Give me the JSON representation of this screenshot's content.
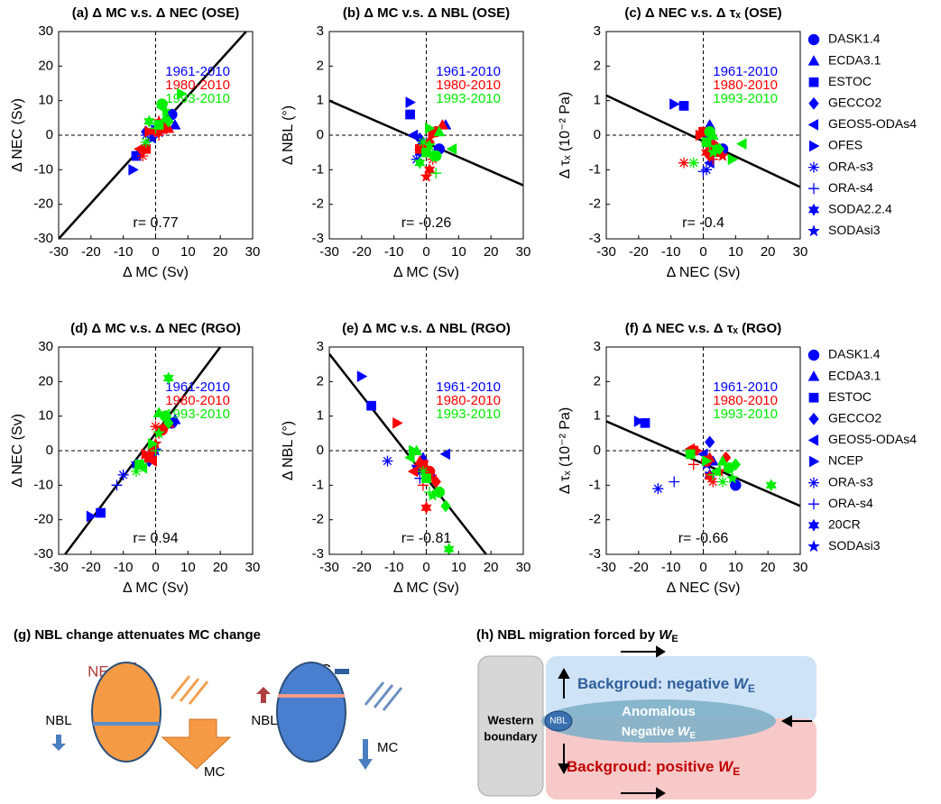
{
  "chart_data": [
    {
      "type": "scatter",
      "title": "(a) Δ MC v.s. Δ NEC (OSE)",
      "x_label": "Δ MC (Sv)",
      "y_label": "Δ NEC (Sv)",
      "annotation": "r= 0.77",
      "xlim": [
        -30,
        30
      ],
      "xticks": [
        -30,
        -20,
        -10,
        0,
        10,
        20,
        30
      ],
      "ylim": [
        -30,
        30
      ],
      "yticks": [
        -30,
        -20,
        -10,
        0,
        10,
        20,
        30
      ],
      "fit": {
        "x": [
          -30,
          28
        ],
        "y": [
          -30,
          30
        ]
      },
      "series": [
        {
          "name": "1961-2010",
          "color": "#0000ff",
          "x": [
            5,
            6,
            -6,
            -3,
            -2,
            -7,
            -3,
            2,
            0,
            -1
          ],
          "values": [
            6,
            3,
            -6,
            1,
            1,
            -10,
            0,
            1,
            2,
            -1
          ]
        },
        {
          "name": "1980-2010",
          "color": "#ff0000",
          "x": [
            3,
            4,
            -3,
            1,
            -5,
            -2,
            -4,
            1,
            0,
            1
          ],
          "values": [
            2,
            2,
            -4,
            1,
            -4,
            1,
            -6,
            0,
            1,
            4
          ]
        },
        {
          "name": "1993-2010",
          "color": "#00ee00",
          "x": [
            2,
            3,
            1,
            4,
            2,
            8,
            -3,
            0,
            -2,
            3
          ],
          "values": [
            9,
            5,
            3,
            4,
            8,
            12,
            -2,
            2,
            4,
            7
          ]
        }
      ]
    },
    {
      "type": "scatter",
      "title": "(b) Δ MC v.s. Δ NBL (OSE)",
      "x_label": "Δ MC (Sv)",
      "y_label": "Δ NBL (°)",
      "annotation": "r= -0.26",
      "xlim": [
        -30,
        30
      ],
      "xticks": [
        -30,
        -20,
        -10,
        0,
        10,
        20,
        30
      ],
      "ylim": [
        -3,
        3
      ],
      "yticks": [
        -3,
        -2,
        -1,
        0,
        1,
        2,
        3
      ],
      "fit": {
        "x": [
          -30,
          30
        ],
        "y": [
          1.0,
          -1.45
        ]
      },
      "series": [
        {
          "name": "1961-2010",
          "color": "#0000ff",
          "x": [
            4,
            6,
            -5,
            -2,
            -4,
            -5,
            -3,
            0,
            -2,
            -1
          ],
          "values": [
            -0.4,
            0.3,
            0.6,
            -0.1,
            0.0,
            0.95,
            -0.7,
            -0.2,
            -0.5,
            -0.3
          ]
        },
        {
          "name": "1980-2010",
          "color": "#ff0000",
          "x": [
            3,
            5,
            -2,
            1,
            -1,
            2,
            2,
            0,
            1,
            0
          ],
          "values": [
            0.1,
            0.3,
            -0.4,
            -0.2,
            -0.3,
            0.0,
            -0.7,
            -0.5,
            -1.0,
            -1.2
          ]
        },
        {
          "name": "1993-2010",
          "color": "#00ee00",
          "x": [
            3,
            4,
            0,
            2,
            8,
            1,
            -1,
            3,
            -2,
            1
          ],
          "values": [
            -0.6,
            0.1,
            -0.5,
            -0.6,
            -0.4,
            0.2,
            -0.2,
            -1.1,
            -0.8,
            -0.3
          ]
        }
      ]
    },
    {
      "type": "scatter",
      "title": "(c) Δ NEC v.s. Δ τₓ (OSE)",
      "x_label": "Δ NEC  (Sv)",
      "y_label": "Δ τₓ (10⁻² Pa)",
      "annotation": "r= -0.4",
      "xlim": [
        -30,
        30
      ],
      "xticks": [
        -30,
        -20,
        -10,
        0,
        10,
        20,
        30
      ],
      "ylim": [
        -3,
        3
      ],
      "yticks": [
        -3,
        -2,
        -1,
        0,
        1,
        2,
        3
      ],
      "fit": {
        "x": [
          -30,
          30
        ],
        "y": [
          1.15,
          -1.5
        ]
      },
      "legend": [
        "DASK1.4",
        "ECDA3.1",
        "ESTOC",
        "GECCO2",
        "GEOS5-ODAs4",
        "OFES",
        "ORA-s3",
        "ORA-s4",
        "SODA2.2.4",
        "SODAsi3"
      ],
      "series": [
        {
          "name": "1961-2010",
          "color": "#0000ff",
          "x": [
            6,
            2,
            -6,
            1,
            2,
            -9,
            1,
            0,
            3,
            2
          ],
          "values": [
            -0.4,
            0.3,
            0.85,
            0.0,
            -0.8,
            0.9,
            -1.0,
            -1.05,
            -0.3,
            -0.2
          ]
        },
        {
          "name": "1980-2010",
          "color": "#ff0000",
          "x": [
            3,
            5,
            0,
            2,
            1,
            -1,
            -6,
            3,
            1,
            6
          ],
          "values": [
            -0.3,
            -0.5,
            0.1,
            -0.6,
            -0.2,
            0.0,
            -0.8,
            -0.7,
            -0.5,
            -0.6
          ]
        },
        {
          "name": "1993-2010",
          "color": "#00ee00",
          "x": [
            2,
            3,
            1,
            5,
            12,
            9,
            -3,
            2,
            4,
            3
          ],
          "values": [
            0.1,
            0.0,
            -0.2,
            -0.4,
            -0.25,
            -0.7,
            -0.8,
            -0.3,
            -0.4,
            -0.5
          ]
        }
      ]
    },
    {
      "type": "scatter",
      "title": "(d) Δ MC v.s. Δ NEC (RGO)",
      "x_label": "Δ MC (Sv)",
      "y_label": "Δ NEC (Sv)",
      "annotation": "r= 0.94",
      "xlim": [
        -30,
        30
      ],
      "xticks": [
        -30,
        -20,
        -10,
        0,
        10,
        20,
        30
      ],
      "ylim": [
        -30,
        30
      ],
      "yticks": [
        -30,
        -20,
        -10,
        0,
        10,
        20,
        30
      ],
      "fit": {
        "x": [
          -28,
          20
        ],
        "y": [
          -30,
          30
        ]
      },
      "series": [
        {
          "name": "1961-2010",
          "color": "#0000ff",
          "x": [
            5,
            6,
            -17,
            -2,
            -1,
            -20,
            -10,
            -12,
            -6,
            0
          ],
          "values": [
            8,
            9,
            -18,
            -3,
            -1,
            -19,
            -7,
            -10,
            -4,
            0
          ]
        },
        {
          "name": "1980-2010",
          "color": "#ff0000",
          "x": [
            2,
            4,
            -2,
            3,
            -1,
            -3,
            0,
            1,
            -1,
            0
          ],
          "values": [
            6,
            8,
            -2,
            7,
            -3,
            -1,
            7,
            5,
            0,
            2
          ]
        },
        {
          "name": "1993-2010",
          "color": "#00ee00",
          "x": [
            3,
            1,
            -5,
            4,
            -4,
            -1,
            -6,
            0,
            4,
            1
          ],
          "values": [
            10,
            11,
            -4,
            8,
            -5,
            2,
            -6,
            0,
            21,
            5
          ]
        }
      ]
    },
    {
      "type": "scatter",
      "title": "(e) Δ MC v.s. Δ NBL (RGO)",
      "x_label": "Δ MC (Sv)",
      "y_label": "Δ NBL (°)",
      "annotation": "r= -0.81",
      "xlim": [
        -30,
        30
      ],
      "xticks": [
        -30,
        -20,
        -10,
        0,
        10,
        20,
        30
      ],
      "ylim": [
        -3,
        3
      ],
      "yticks": [
        -3,
        -2,
        -1,
        0,
        1,
        2,
        3
      ],
      "fit": {
        "x": [
          -30,
          18.5
        ],
        "y": [
          2.8,
          -3
        ]
      },
      "series": [
        {
          "name": "1961-2010",
          "color": "#0000ff",
          "x": [
            1,
            -1,
            -17,
            -1,
            6,
            -20,
            -12,
            -2,
            -3,
            -2
          ],
          "values": [
            -0.7,
            -0.2,
            1.3,
            -0.4,
            -0.1,
            2.15,
            -0.3,
            -0.8,
            -0.5,
            -0.6
          ]
        },
        {
          "name": "1980-2010",
          "color": "#ff0000",
          "x": [
            1,
            -2,
            -1,
            3,
            -4,
            -9,
            2,
            -1,
            0,
            -1
          ],
          "values": [
            -0.6,
            -0.3,
            -0.4,
            -0.9,
            -0.6,
            0.8,
            -0.8,
            -1.0,
            -1.65,
            -0.5
          ]
        },
        {
          "name": "1993-2010",
          "color": "#00ee00",
          "x": [
            4,
            -3,
            0,
            6,
            -5,
            -4,
            -1,
            1,
            7,
            2
          ],
          "values": [
            -1.2,
            0.0,
            -0.8,
            -1.6,
            -0.2,
            0.0,
            -0.6,
            -1.2,
            -2.85,
            -1.3
          ]
        }
      ]
    },
    {
      "type": "scatter",
      "title": "(f) Δ NEC v.s. Δ τₓ (RGO)",
      "x_label": "Δ NEC  (Sv)",
      "y_label": "Δ τₓ (10⁻² Pa)",
      "annotation": "r= -0.66",
      "xlim": [
        -30,
        30
      ],
      "xticks": [
        -30,
        -20,
        -10,
        0,
        10,
        20,
        30
      ],
      "ylim": [
        -3,
        3
      ],
      "yticks": [
        -3,
        -2,
        -1,
        0,
        1,
        2,
        3
      ],
      "fit": {
        "x": [
          -30,
          30
        ],
        "y": [
          0.85,
          -1.6
        ]
      },
      "legend": [
        "DASK1.4",
        "ECDA3.1",
        "ESTOC",
        "GECCO2",
        "GEOS5-ODAs4",
        "NCEP",
        "ORA-s3",
        "ORA-s4",
        "20CR",
        "SODAsi3"
      ],
      "series": [
        {
          "name": "1961-2010",
          "color": "#0000ff",
          "x": [
            10,
            3,
            -18,
            2,
            0,
            -20,
            -14,
            -9,
            2,
            1
          ],
          "values": [
            -1.0,
            -0.3,
            0.8,
            0.25,
            -0.1,
            0.85,
            -1.1,
            -0.9,
            -0.7,
            -0.4
          ]
        },
        {
          "name": "1980-2010",
          "color": "#ff0000",
          "x": [
            1,
            2,
            -3,
            7,
            -4,
            -2,
            3,
            -3,
            2,
            5
          ],
          "values": [
            -0.3,
            -0.2,
            0.0,
            -0.2,
            0.05,
            0.0,
            -0.9,
            -0.4,
            -0.75,
            -0.6
          ]
        },
        {
          "name": "1993-2010",
          "color": "#00ee00",
          "x": [
            8,
            6,
            -4,
            10,
            4,
            1,
            6,
            3,
            21,
            9
          ],
          "values": [
            -0.5,
            -0.3,
            -0.1,
            -0.4,
            -0.6,
            -0.3,
            -0.9,
            -0.7,
            -1.0,
            -0.8
          ]
        }
      ]
    }
  ],
  "diagrams": {
    "g": {
      "title": "(g) NBL change attenuates MC change",
      "nec_left": "NEC",
      "nbl_left": "NBL",
      "mc_left": "MC",
      "nec_right": "NEC",
      "nbl_right": "NBL",
      "mc_right": "MC"
    },
    "h": {
      "title": "(h) NBL migration forced by ",
      "w": "W",
      "e": "E",
      "negative": "Backgroud: negative ",
      "anomalous": "Anomalous",
      "negative_anom": "Negative ",
      "positive": "Backgroud: positive ",
      "western": "Western",
      "boundary": "boundary",
      "nbl": "NBL"
    }
  }
}
